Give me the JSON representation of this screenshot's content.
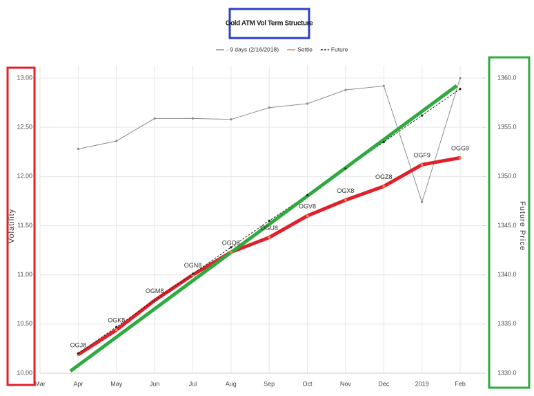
{
  "chart_data": {
    "type": "line",
    "title": "Gold ATM Vol Term Structure",
    "y_label": "Volatility",
    "y2_label": "Future Price",
    "x": [
      "2018-04",
      "2018-05",
      "2018-06",
      "2018-07",
      "2018-08",
      "2018-09",
      "2018-10",
      "2018-11",
      "2018-12",
      "2019-01",
      "2019-02"
    ],
    "xlim": [
      "2018-03",
      "2019-02"
    ],
    "xticks": [
      {
        "value": "2018-03",
        "label": "Mar"
      },
      {
        "value": "2018-04",
        "label": "Apr"
      },
      {
        "value": "2018-05",
        "label": "May"
      },
      {
        "value": "2018-06",
        "label": "Jun"
      },
      {
        "value": "2018-07",
        "label": "Jul"
      },
      {
        "value": "2018-08",
        "label": "Aug"
      },
      {
        "value": "2018-09",
        "label": "Sep"
      },
      {
        "value": "2018-10",
        "label": "Oct"
      },
      {
        "value": "2018-11",
        "label": "Nov"
      },
      {
        "value": "2018-12",
        "label": "Dec"
      },
      {
        "value": "2019-01",
        "label": "2019"
      },
      {
        "value": "2019-02",
        "label": "Feb"
      }
    ],
    "ylim": [
      10,
      13
    ],
    "yticks": [
      {
        "value": 10,
        "label": "10.00"
      },
      {
        "value": 10.5,
        "label": "10.50"
      },
      {
        "value": 11,
        "label": "11.00"
      },
      {
        "value": 11.5,
        "label": "11.50"
      },
      {
        "value": 12,
        "label": "12.00"
      },
      {
        "value": 12.5,
        "label": "12.50"
      },
      {
        "value": 13,
        "label": "13.00"
      }
    ],
    "y2lim": [
      1330,
      1360
    ],
    "y2ticks": [
      {
        "value": 1330,
        "label": "1330.0"
      },
      {
        "value": 1335,
        "label": "1335.0"
      },
      {
        "value": 1340,
        "label": "1340.0"
      },
      {
        "value": 1345,
        "label": "1345.0"
      },
      {
        "value": 1350,
        "label": "1350.0"
      },
      {
        "value": 1355,
        "label": "1355.0"
      },
      {
        "value": 1360,
        "label": "1360.0"
      }
    ],
    "grid": true,
    "series": [
      {
        "name": "- 9 days (2/16/2018)",
        "color": "#8c8c8c",
        "values": [
          12.28,
          12.36,
          12.59,
          12.59,
          12.58,
          12.7,
          12.74,
          12.88,
          12.92,
          11.74,
          13.0
        ]
      },
      {
        "name": "Settle",
        "color": "#f47c44",
        "values": [
          10.19,
          10.44,
          10.74,
          11.0,
          11.23,
          11.38,
          11.6,
          11.76,
          11.9,
          12.12,
          12.19
        ],
        "labels": [
          "OGJ8",
          "OGK8",
          "OGM8",
          "OGN8",
          "OGQ8",
          "OGU8",
          "OGV8",
          "OGX8",
          "OGZ8",
          "OGF9",
          "OGG9"
        ]
      },
      {
        "name": "Future",
        "color": "#222222",
        "axis": "y2",
        "dashed": true,
        "values": [
          1332.0,
          1334.7,
          1337.4,
          1340.1,
          1342.8,
          1345.5,
          1348.1,
          1350.8,
          1353.5,
          1356.2,
          1358.9
        ]
      }
    ]
  }
}
